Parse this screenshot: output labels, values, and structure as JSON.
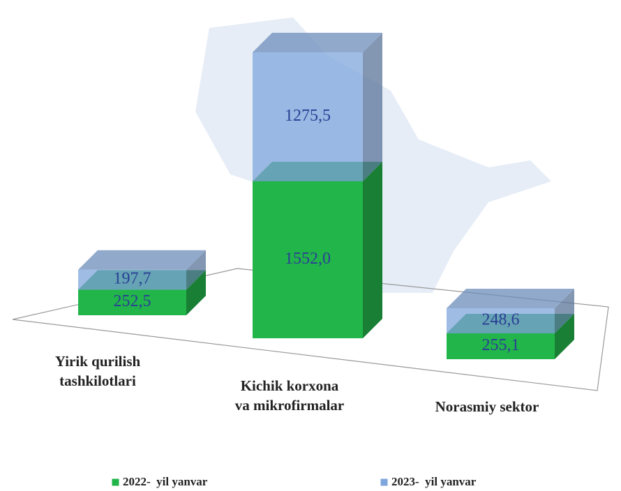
{
  "chart_data": {
    "type": "bar3d",
    "categories": [
      [
        "Yirik qurilish",
        "tashkilotlari"
      ],
      [
        "Kichik korxona",
        "va mikrofirmalar"
      ],
      [
        "Norasmiy sektor"
      ]
    ],
    "series": [
      {
        "name": "2022-  yil yanvar",
        "color": "#22b54a",
        "values": [
          252.5,
          1552.0,
          255.1
        ],
        "value_labels": [
          "252,5",
          "1552,0",
          "255,1"
        ]
      },
      {
        "name": "2023-  yil yanvar",
        "color": "#7fa6dc",
        "values": [
          197.7,
          1275.5,
          248.6
        ],
        "value_labels": [
          "197,7",
          "1275,5",
          "248,6"
        ]
      }
    ]
  }
}
